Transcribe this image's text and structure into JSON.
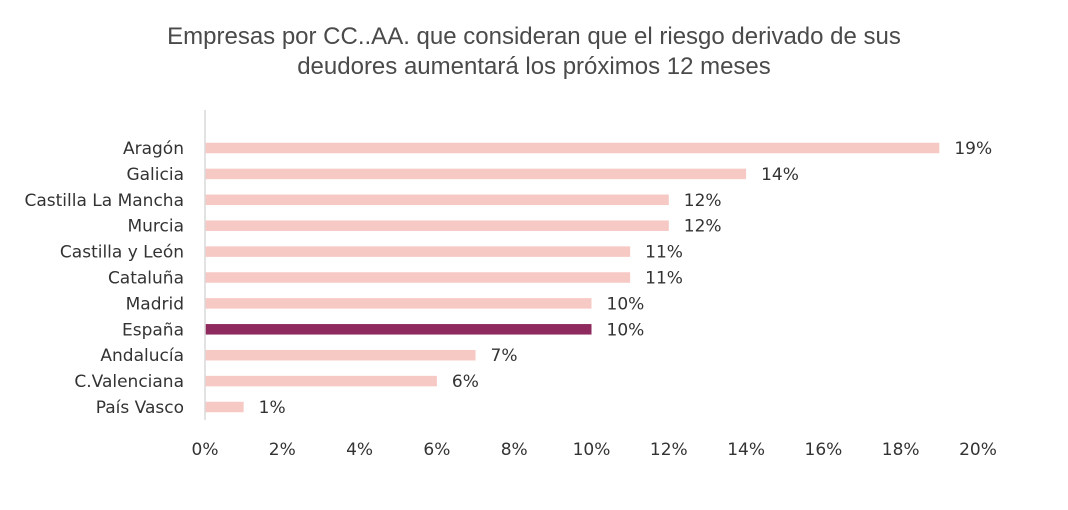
{
  "chart_data": {
    "type": "bar",
    "orientation": "horizontal",
    "title_line1": "Empresas por CC..AA. que consideran que el riesgo derivado de sus",
    "title_line2": "deudores aumentará los próximos 12 meses",
    "categories": [
      "Aragón",
      "Galicia",
      "Castilla La Mancha",
      "Murcia",
      "Castilla y León",
      "Cataluña",
      "Madrid",
      "España",
      "Andalucía",
      "C.Valenciana",
      "País Vasco"
    ],
    "values": [
      19,
      14,
      12,
      12,
      11,
      11,
      10,
      10,
      7,
      6,
      1
    ],
    "value_labels": [
      "19%",
      "14%",
      "12%",
      "12%",
      "11%",
      "11%",
      "10%",
      "10%",
      "7%",
      "6%",
      "1%"
    ],
    "highlight": "España",
    "xlim": [
      0,
      20
    ],
    "x_ticks": [
      0,
      2,
      4,
      6,
      8,
      10,
      12,
      14,
      16,
      18,
      20
    ],
    "x_tick_labels": [
      "0%",
      "2%",
      "4%",
      "6%",
      "8%",
      "10%",
      "12%",
      "14%",
      "16%",
      "18%",
      "20%"
    ],
    "xlabel": "",
    "ylabel": "",
    "grid": false,
    "colors": {
      "default": "#f7c9c5",
      "highlight": "#8e2a5e",
      "axis": "#d9d9d9"
    }
  }
}
